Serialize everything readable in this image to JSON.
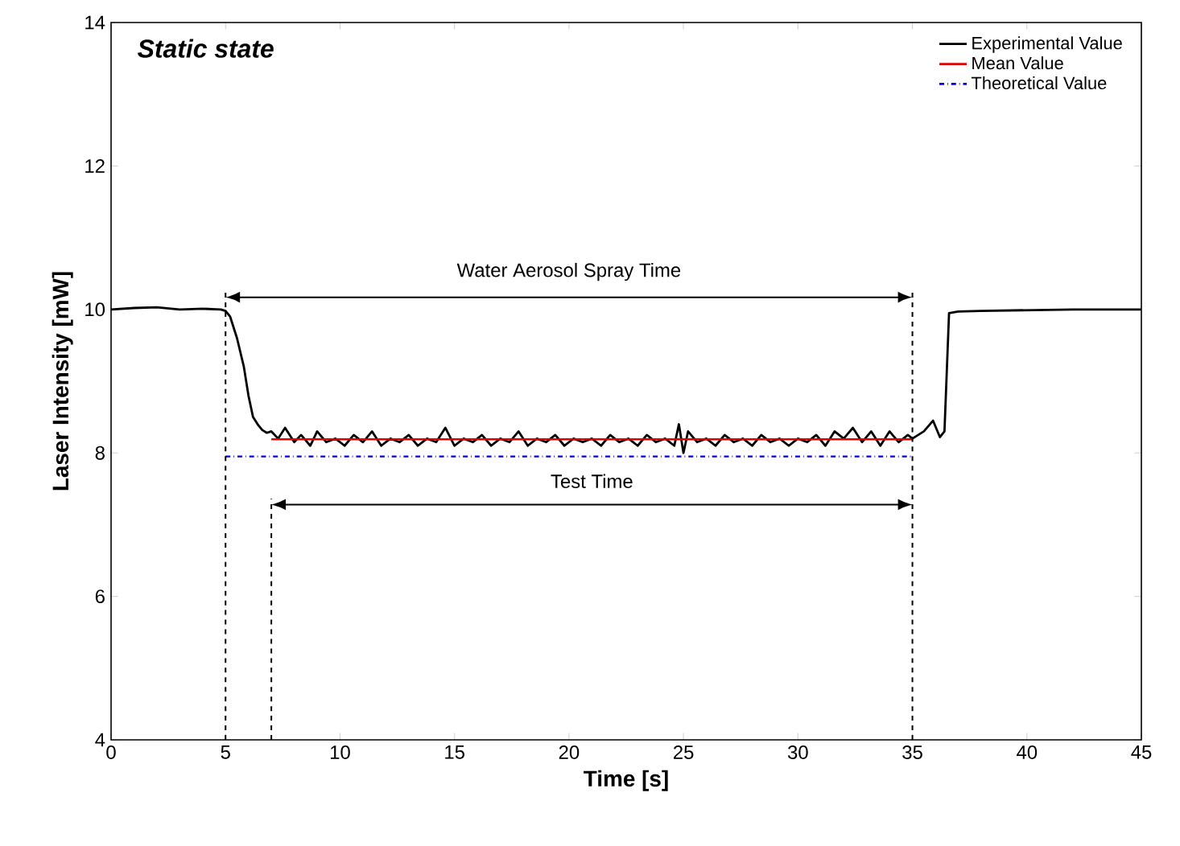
{
  "chart_data": {
    "type": "line",
    "title": "Static state",
    "xlabel": "Time [s]",
    "ylabel": "Laser Intensity [mW]",
    "xlim": [
      0,
      45
    ],
    "ylim": [
      4,
      14
    ],
    "xticks": [
      0,
      5,
      10,
      15,
      20,
      25,
      30,
      35,
      40,
      45
    ],
    "yticks": [
      4,
      6,
      8,
      10,
      12,
      14
    ],
    "legend": "top right",
    "grid": false,
    "series": [
      {
        "name": "Experimental Value",
        "color": "#000000",
        "line_style": "solid",
        "x": [
          0,
          1,
          2,
          3,
          4,
          4.8,
          5.0,
          5.2,
          5.5,
          5.8,
          6.0,
          6.2,
          6.4,
          6.6,
          6.8,
          7.0,
          7.3,
          7.6,
          8.0,
          8.3,
          8.7,
          9.0,
          9.4,
          9.8,
          10.2,
          10.6,
          11.0,
          11.4,
          11.8,
          12.2,
          12.6,
          13.0,
          13.4,
          13.8,
          14.2,
          14.6,
          15.0,
          15.4,
          15.8,
          16.2,
          16.6,
          17.0,
          17.4,
          17.8,
          18.2,
          18.6,
          19.0,
          19.4,
          19.8,
          20.2,
          20.6,
          21.0,
          21.4,
          21.8,
          22.2,
          22.6,
          23.0,
          23.4,
          23.8,
          24.2,
          24.6,
          24.8,
          25.0,
          25.2,
          25.6,
          26.0,
          26.4,
          26.8,
          27.2,
          27.6,
          28.0,
          28.4,
          28.8,
          29.2,
          29.6,
          30.0,
          30.4,
          30.8,
          31.2,
          31.6,
          32.0,
          32.4,
          32.8,
          33.2,
          33.6,
          34.0,
          34.4,
          34.8,
          35.0,
          35.5,
          35.9,
          36.2,
          36.4,
          36.6,
          37.0,
          38.0,
          40.0,
          42.0,
          45.0
        ],
        "values": [
          10.0,
          10.02,
          10.03,
          10.0,
          10.01,
          10.0,
          9.98,
          9.9,
          9.6,
          9.2,
          8.8,
          8.5,
          8.4,
          8.32,
          8.28,
          8.3,
          8.2,
          8.35,
          8.15,
          8.25,
          8.1,
          8.3,
          8.15,
          8.2,
          8.1,
          8.25,
          8.15,
          8.3,
          8.1,
          8.2,
          8.15,
          8.25,
          8.1,
          8.2,
          8.15,
          8.35,
          8.1,
          8.2,
          8.15,
          8.25,
          8.1,
          8.2,
          8.15,
          8.3,
          8.1,
          8.2,
          8.15,
          8.25,
          8.1,
          8.2,
          8.15,
          8.2,
          8.1,
          8.25,
          8.15,
          8.2,
          8.1,
          8.25,
          8.15,
          8.2,
          8.1,
          8.4,
          8.0,
          8.3,
          8.15,
          8.2,
          8.1,
          8.25,
          8.15,
          8.2,
          8.1,
          8.25,
          8.15,
          8.2,
          8.1,
          8.2,
          8.15,
          8.25,
          8.1,
          8.3,
          8.2,
          8.35,
          8.15,
          8.3,
          8.1,
          8.3,
          8.15,
          8.25,
          8.2,
          8.3,
          8.45,
          8.22,
          8.3,
          9.95,
          9.97,
          9.98,
          9.99,
          10.0,
          10.0
        ]
      },
      {
        "name": "Mean Value",
        "color": "#e00000",
        "line_style": "solid",
        "x": [
          7,
          35
        ],
        "values": [
          8.19,
          8.19
        ]
      },
      {
        "name": "Theoretical Value",
        "color": "#0000e0",
        "line_style": "dashdot",
        "x": [
          5,
          35
        ],
        "values": [
          7.95,
          7.95
        ]
      }
    ],
    "ref_lines": [
      {
        "axis": "x",
        "value": 5,
        "color": "#000000",
        "line_style": "dashed"
      },
      {
        "axis": "x",
        "value": 7,
        "color": "#000000",
        "line_style": "dashed"
      },
      {
        "axis": "x",
        "value": 35,
        "color": "#000000",
        "line_style": "dashed"
      }
    ],
    "annotations": [
      "Water Aerosol Spray Time",
      "Test Time"
    ]
  }
}
